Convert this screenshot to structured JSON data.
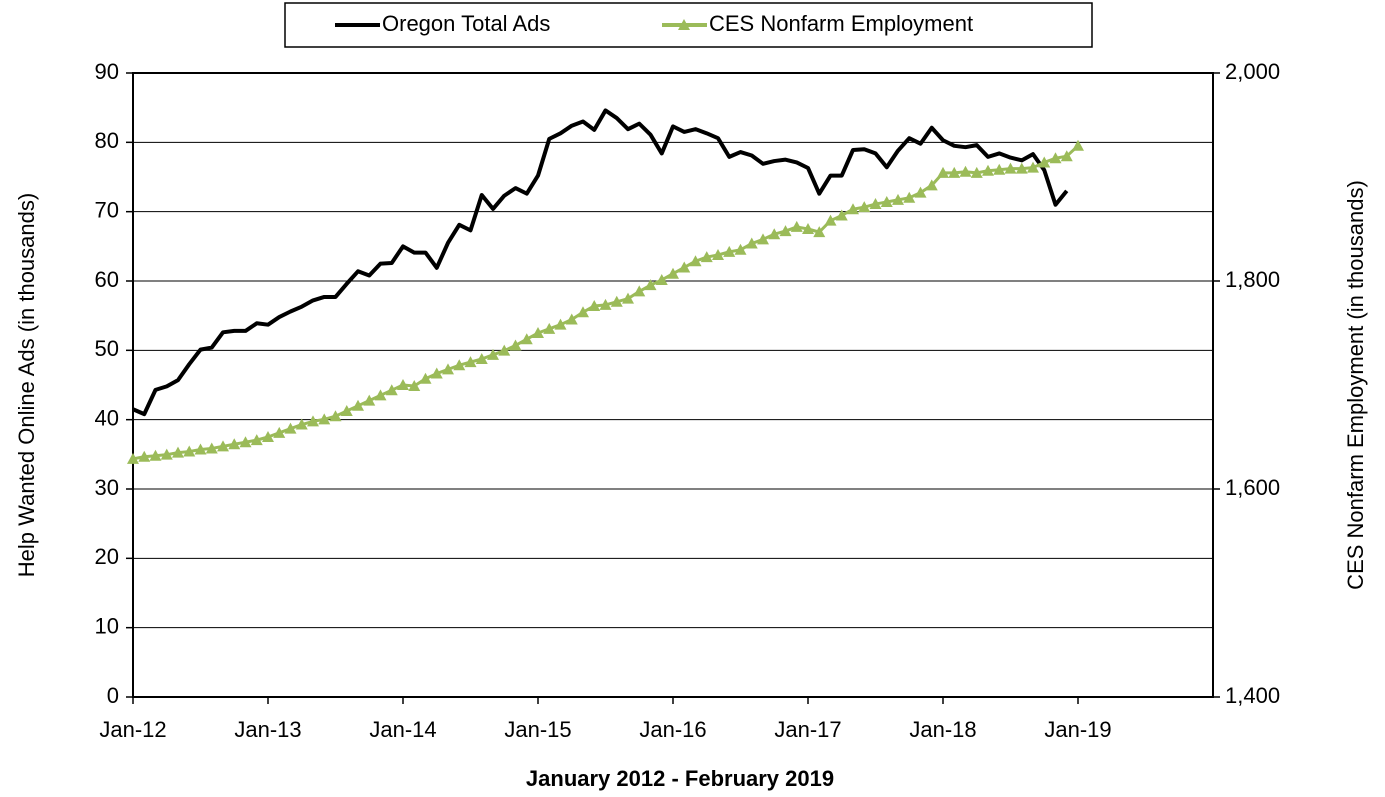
{
  "chart_data": {
    "type": "line",
    "x_label": "January 2012 - February 2019",
    "y_label": "Help Wanted Online Ads (in thousands)",
    "y2_label": "CES Nonfarm Employment (in thousands)",
    "categories": [
      "Jan-12",
      null,
      null,
      null,
      null,
      null,
      null,
      null,
      null,
      null,
      null,
      null,
      "Jan-13",
      null,
      null,
      null,
      null,
      null,
      null,
      null,
      null,
      null,
      null,
      null,
      "Jan-14",
      null,
      null,
      null,
      null,
      null,
      null,
      null,
      null,
      null,
      null,
      null,
      "Jan-15",
      null,
      null,
      null,
      null,
      null,
      null,
      null,
      null,
      null,
      null,
      null,
      "Jan-16",
      null,
      null,
      null,
      null,
      null,
      null,
      null,
      null,
      null,
      null,
      null,
      "Jan-17",
      null,
      null,
      null,
      null,
      null,
      null,
      null,
      null,
      null,
      null,
      null,
      "Jan-18",
      null,
      null,
      null,
      null,
      null,
      null,
      null,
      null,
      null,
      null,
      null,
      "Jan-19",
      null,
      null,
      null,
      null,
      null,
      null,
      null,
      null,
      null,
      null,
      null
    ],
    "ylim": [
      0,
      90
    ],
    "yticks": [
      0,
      10,
      20,
      30,
      40,
      50,
      60,
      70,
      80,
      90
    ],
    "y2lim": [
      1400,
      2000
    ],
    "y2ticks": [
      {
        "value": 1400,
        "label": "1,400"
      },
      {
        "value": 1600,
        "label": "1,600"
      },
      {
        "value": 1800,
        "label": "1,800"
      },
      {
        "value": 2000,
        "label": "2,000"
      }
    ],
    "grid": true,
    "legend": "top",
    "series": [
      {
        "name": "Oregon Total Ads",
        "color": "#000000",
        "axis": "y",
        "values": [
          41.5,
          40.8,
          44.3,
          44.8,
          45.7,
          48.0,
          50.1,
          50.4,
          52.6,
          52.8,
          52.8,
          53.9,
          53.7,
          54.8,
          55.6,
          56.3,
          57.2,
          57.7,
          57.7,
          59.6,
          61.4,
          60.8,
          62.5,
          62.6,
          65.0,
          64.1,
          64.1,
          61.9,
          65.5,
          68.1,
          67.3,
          72.4,
          70.4,
          72.3,
          73.4,
          72.6,
          75.2,
          80.5,
          81.3,
          82.4,
          83.0,
          81.8,
          84.6,
          83.5,
          81.9,
          82.7,
          81.1,
          78.4,
          82.3,
          81.5,
          81.9,
          81.3,
          80.6,
          77.9,
          78.6,
          78.1,
          76.9,
          77.3,
          77.5,
          77.1,
          76.3,
          72.6,
          75.2,
          75.2,
          78.9,
          79.0,
          78.4,
          76.4,
          78.8,
          80.6,
          79.8,
          82.1,
          80.3,
          79.5,
          79.3,
          79.6,
          77.9,
          78.4,
          77.8,
          77.4,
          78.3,
          76.0,
          71.0,
          73.0,
          null,
          null,
          null,
          null,
          null,
          null,
          null,
          null,
          null,
          null,
          null,
          null
        ]
      },
      {
        "name": "CES Nonfarm Employment",
        "color": "#9bbb59",
        "axis": "y2",
        "marker": "triangle",
        "values": [
          1629,
          1631,
          1632,
          1633,
          1635,
          1636,
          1638,
          1639,
          1641,
          1643,
          1645,
          1647,
          1650,
          1654,
          1658,
          1662,
          1665,
          1667,
          1670,
          1675,
          1680,
          1685,
          1690,
          1695,
          1700,
          1699,
          1706,
          1711,
          1715,
          1719,
          1722,
          1725,
          1729,
          1733,
          1738,
          1744,
          1750,
          1754,
          1758,
          1763,
          1770,
          1776,
          1777,
          1780,
          1783,
          1790,
          1796,
          1801,
          1807,
          1813,
          1819,
          1823,
          1825,
          1828,
          1830,
          1836,
          1840,
          1845,
          1848,
          1852,
          1850,
          1847,
          1858,
          1863,
          1869,
          1871,
          1874,
          1876,
          1878,
          1880,
          1885,
          1892,
          1904,
          1904,
          1905,
          1904,
          1906,
          1907,
          1908,
          1908,
          1909,
          1914,
          1918,
          1920,
          1930,
          null,
          null,
          null,
          null,
          null,
          null,
          null,
          null,
          null,
          null,
          null
        ]
      }
    ]
  }
}
